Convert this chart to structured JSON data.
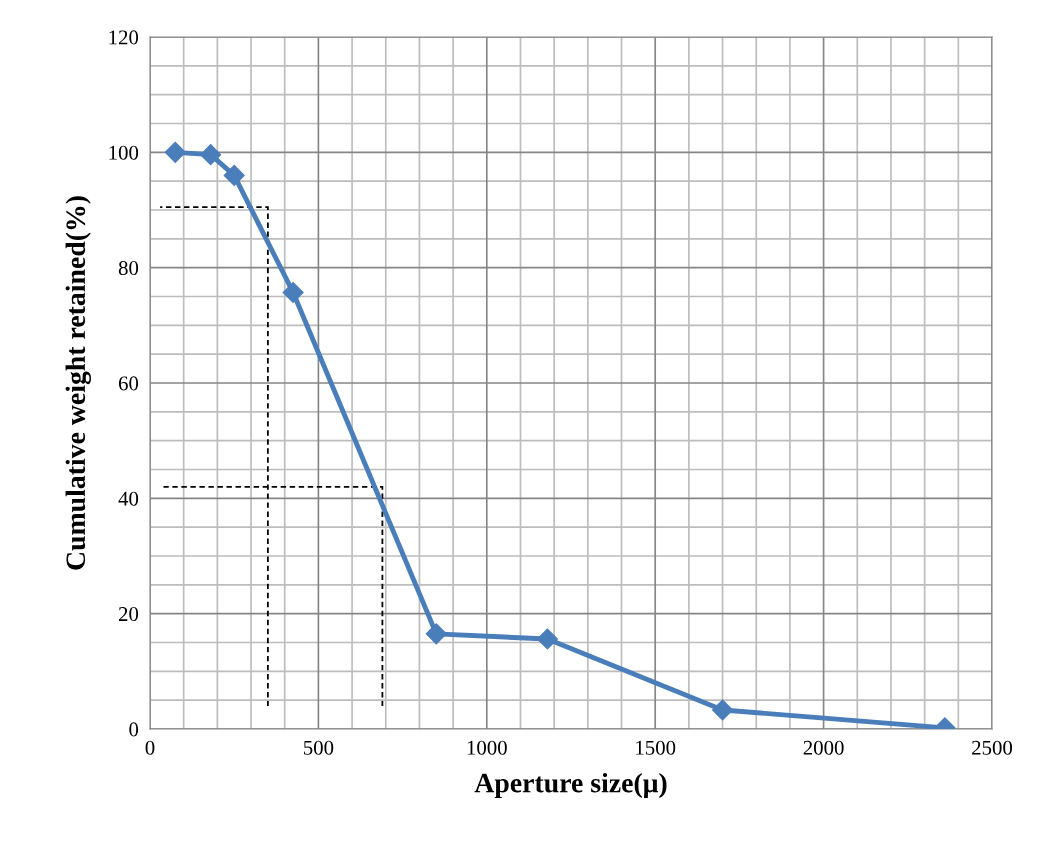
{
  "chart_data": {
    "type": "line",
    "xlabel": "Aperture size(μ)",
    "ylabel": "Cumulative weight retained(%)",
    "xlim": [
      0,
      2500
    ],
    "xticks": [
      0,
      500,
      1000,
      1500,
      2000,
      2500
    ],
    "ylim": [
      0,
      120
    ],
    "yticks": [
      0,
      20,
      40,
      60,
      80,
      100,
      120
    ],
    "grid": true,
    "marker": "diamond",
    "line_style": "solid",
    "series": [
      {
        "color": "#4a7ebb",
        "x": [
          75,
          180,
          250,
          425,
          850,
          1180,
          1700,
          2360
        ],
        "values": [
          100,
          99.6,
          96,
          75.7,
          16.5,
          15.6,
          3.3,
          0.2
        ]
      },
      {
        "color": "#000000",
        "line_style": "dashed",
        "marker": "none",
        "x": [
          30,
          350,
          350
        ],
        "values": [
          90.5,
          90.5,
          4
        ]
      },
      {
        "color": "#000000",
        "line_style": "dashed",
        "marker": "none",
        "x": [
          40,
          690,
          690
        ],
        "values": [
          42,
          42,
          4
        ]
      }
    ]
  }
}
